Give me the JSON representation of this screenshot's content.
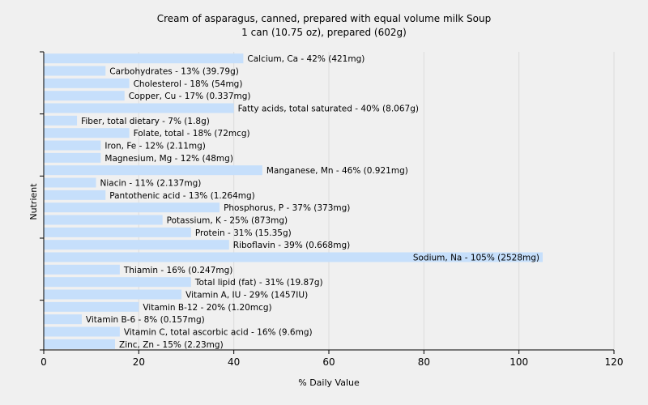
{
  "chart_data": {
    "type": "bar",
    "orientation": "horizontal",
    "title": "Cream of asparagus, canned, prepared with equal volume milk Soup",
    "subtitle": "1 can (10.75 oz), prepared (602g)",
    "xlabel": "% Daily Value",
    "ylabel": "Nutrient",
    "xlim": [
      0,
      120
    ],
    "xticks": [
      "0",
      "20",
      "40",
      "60",
      "80",
      "100",
      "120"
    ],
    "grid": true,
    "bar_color": "#c6dffb",
    "categories": [
      "Calcium, Ca",
      "Carbohydrates",
      "Cholesterol",
      "Copper, Cu",
      "Fatty acids, total saturated",
      "Fiber, total dietary",
      "Folate, total",
      "Iron, Fe",
      "Magnesium, Mg",
      "Manganese, Mn",
      "Niacin",
      "Pantothenic acid",
      "Phosphorus, P",
      "Potassium, K",
      "Protein",
      "Riboflavin",
      "Sodium, Na",
      "Thiamin",
      "Total lipid (fat)",
      "Vitamin A, IU",
      "Vitamin B-12",
      "Vitamin B-6",
      "Vitamin C, total ascorbic acid",
      "Zinc, Zn"
    ],
    "values": [
      42,
      13,
      18,
      17,
      40,
      7,
      18,
      12,
      12,
      46,
      11,
      13,
      37,
      25,
      31,
      39,
      105,
      16,
      31,
      29,
      20,
      8,
      16,
      15
    ],
    "labels": [
      "Calcium, Ca - 42% (421mg)",
      "Carbohydrates - 13% (39.79g)",
      "Cholesterol - 18% (54mg)",
      "Copper, Cu - 17% (0.337mg)",
      "Fatty acids, total saturated - 40% (8.067g)",
      "Fiber, total dietary - 7% (1.8g)",
      "Folate, total - 18% (72mcg)",
      "Iron, Fe - 12% (2.11mg)",
      "Magnesium, Mg - 12% (48mg)",
      "Manganese, Mn - 46% (0.921mg)",
      "Niacin - 11% (2.137mg)",
      "Pantothenic acid - 13% (1.264mg)",
      "Phosphorus, P - 37% (373mg)",
      "Potassium, K - 25% (873mg)",
      "Protein - 31% (15.35g)",
      "Riboflavin - 39% (0.668mg)",
      "Sodium, Na - 105% (2528mg)",
      "Thiamin - 16% (0.247mg)",
      "Total lipid (fat) - 31% (19.87g)",
      "Vitamin A, IU - 29% (1457IU)",
      "Vitamin B-12 - 20% (1.20mcg)",
      "Vitamin B-6 - 8% (0.157mg)",
      "Vitamin C, total ascorbic acid - 16% (9.6mg)",
      "Zinc, Zn - 15% (2.23mg)"
    ]
  }
}
